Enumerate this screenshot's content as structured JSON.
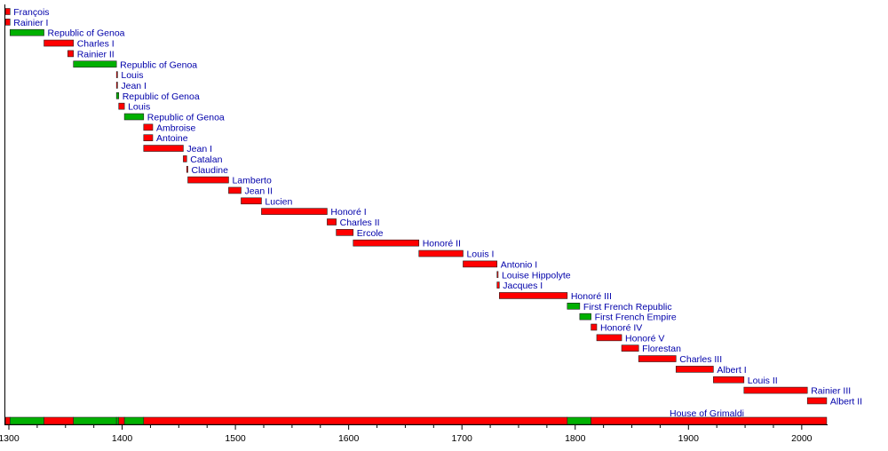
{
  "chart_data": {
    "type": "bar",
    "orientation": "horizontal-timeline",
    "xlim": [
      1297,
      2022
    ],
    "x_ticks": [
      1300,
      1400,
      1500,
      1600,
      1700,
      1800,
      1900,
      2000
    ],
    "x_tick_labels": [
      "1300",
      "1400",
      "1500",
      "1600",
      "1700",
      "1800",
      "1900",
      "2000"
    ],
    "minor_tick_step": 25,
    "colors": {
      "grimaldi": "#ff0000",
      "genoa_france": "#00b000",
      "label": "#0000aa"
    },
    "entries": [
      {
        "name": "François",
        "start": 1297,
        "end": 1301,
        "kind": "grimaldi"
      },
      {
        "name": "Rainier I",
        "start": 1297,
        "end": 1301,
        "kind": "grimaldi"
      },
      {
        "name": "Republic of Genoa",
        "start": 1301,
        "end": 1331,
        "kind": "other"
      },
      {
        "name": "Charles I",
        "start": 1331,
        "end": 1357,
        "kind": "grimaldi"
      },
      {
        "name": "Rainier II",
        "start": 1352,
        "end": 1357,
        "kind": "grimaldi"
      },
      {
        "name": "Republic of Genoa",
        "start": 1357,
        "end": 1395,
        "kind": "other"
      },
      {
        "name": "Louis",
        "start": 1395,
        "end": 1395.5,
        "kind": "grimaldi"
      },
      {
        "name": "Jean I",
        "start": 1395,
        "end": 1395.5,
        "kind": "grimaldi"
      },
      {
        "name": "Republic of Genoa",
        "start": 1395,
        "end": 1397,
        "kind": "other"
      },
      {
        "name": "Louis",
        "start": 1397,
        "end": 1402,
        "kind": "grimaldi"
      },
      {
        "name": "Republic of Genoa",
        "start": 1402,
        "end": 1419,
        "kind": "other"
      },
      {
        "name": "Ambroise",
        "start": 1419,
        "end": 1427,
        "kind": "grimaldi"
      },
      {
        "name": "Antoine",
        "start": 1419,
        "end": 1427,
        "kind": "grimaldi"
      },
      {
        "name": "Jean I",
        "start": 1419,
        "end": 1454,
        "kind": "grimaldi"
      },
      {
        "name": "Catalan",
        "start": 1454,
        "end": 1457,
        "kind": "grimaldi"
      },
      {
        "name": "Claudine",
        "start": 1457,
        "end": 1458,
        "kind": "grimaldi"
      },
      {
        "name": "Lamberto",
        "start": 1458,
        "end": 1494,
        "kind": "grimaldi"
      },
      {
        "name": "Jean II",
        "start": 1494,
        "end": 1505,
        "kind": "grimaldi"
      },
      {
        "name": "Lucien",
        "start": 1505,
        "end": 1523,
        "kind": "grimaldi"
      },
      {
        "name": "Honoré I",
        "start": 1523,
        "end": 1581,
        "kind": "grimaldi"
      },
      {
        "name": "Charles II",
        "start": 1581,
        "end": 1589,
        "kind": "grimaldi"
      },
      {
        "name": "Ercole",
        "start": 1589,
        "end": 1604,
        "kind": "grimaldi"
      },
      {
        "name": "Honoré II",
        "start": 1604,
        "end": 1662,
        "kind": "grimaldi"
      },
      {
        "name": "Louis I",
        "start": 1662,
        "end": 1701,
        "kind": "grimaldi"
      },
      {
        "name": "Antonio I",
        "start": 1701,
        "end": 1731,
        "kind": "grimaldi"
      },
      {
        "name": "Louise Hippolyte",
        "start": 1731,
        "end": 1731.5,
        "kind": "grimaldi"
      },
      {
        "name": "Jacques I",
        "start": 1731,
        "end": 1733,
        "kind": "grimaldi"
      },
      {
        "name": "Honoré III",
        "start": 1733,
        "end": 1793,
        "kind": "grimaldi"
      },
      {
        "name": "First French Republic",
        "start": 1793,
        "end": 1804,
        "kind": "other"
      },
      {
        "name": "First French Empire",
        "start": 1804,
        "end": 1814,
        "kind": "other"
      },
      {
        "name": "Honoré IV",
        "start": 1814,
        "end": 1819,
        "kind": "grimaldi"
      },
      {
        "name": "Honoré V",
        "start": 1819,
        "end": 1841,
        "kind": "grimaldi"
      },
      {
        "name": "Florestan",
        "start": 1841,
        "end": 1856,
        "kind": "grimaldi"
      },
      {
        "name": "Charles III",
        "start": 1856,
        "end": 1889,
        "kind": "grimaldi"
      },
      {
        "name": "Albert I",
        "start": 1889,
        "end": 1922,
        "kind": "grimaldi"
      },
      {
        "name": "Louis II",
        "start": 1922,
        "end": 1949,
        "kind": "grimaldi"
      },
      {
        "name": "Rainier III",
        "start": 1949,
        "end": 2005,
        "kind": "grimaldi"
      },
      {
        "name": "Albert II",
        "start": 2005,
        "end": 2022,
        "kind": "grimaldi"
      }
    ],
    "summary": {
      "label": "House of Grimaldi",
      "segments": [
        {
          "start": 1297,
          "end": 1301,
          "kind": "grimaldi"
        },
        {
          "start": 1301,
          "end": 1331,
          "kind": "other"
        },
        {
          "start": 1331,
          "end": 1357,
          "kind": "grimaldi"
        },
        {
          "start": 1357,
          "end": 1395,
          "kind": "other"
        },
        {
          "start": 1395,
          "end": 1397,
          "kind": "other"
        },
        {
          "start": 1397,
          "end": 1402,
          "kind": "grimaldi"
        },
        {
          "start": 1402,
          "end": 1419,
          "kind": "other"
        },
        {
          "start": 1419,
          "end": 1793,
          "kind": "grimaldi"
        },
        {
          "start": 1793,
          "end": 1814,
          "kind": "other"
        },
        {
          "start": 1814,
          "end": 2022,
          "kind": "grimaldi"
        }
      ]
    }
  }
}
